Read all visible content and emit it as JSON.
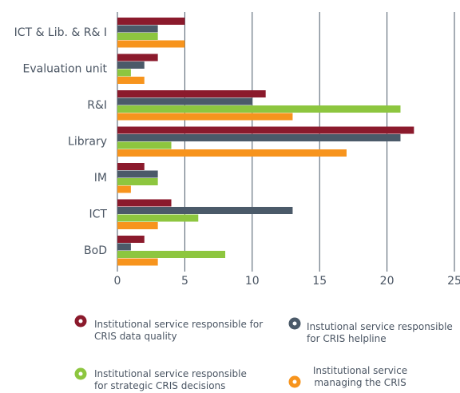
{
  "chart_data": {
    "type": "barh",
    "categories": [
      "ICT & Lib. & R& I",
      "Evaluation unit",
      "R&I",
      "Library",
      "IM",
      "ICT",
      "BoD"
    ],
    "series": [
      {
        "name": "Institutional service responsible for CRIS data quality",
        "color": "#8b1a2c",
        "values": [
          5,
          3,
          11,
          22,
          2,
          4,
          2
        ]
      },
      {
        "name": "Instutional service responsible for CRIS helpline",
        "color": "#4b5a69",
        "values": [
          3,
          2,
          10,
          21,
          3,
          13,
          1
        ]
      },
      {
        "name": "Institutional service responsible for strategic CRIS decisions",
        "color": "#8dc63f",
        "values": [
          3,
          1,
          21,
          4,
          3,
          6,
          8
        ]
      },
      {
        "name": "Institutional service managing the CRIS",
        "color": "#f7941d",
        "values": [
          5,
          2,
          13,
          17,
          1,
          3,
          3
        ]
      }
    ],
    "xlim": [
      0,
      25
    ],
    "xticks": [
      0,
      5,
      10,
      15,
      20,
      25
    ],
    "grid": true
  }
}
